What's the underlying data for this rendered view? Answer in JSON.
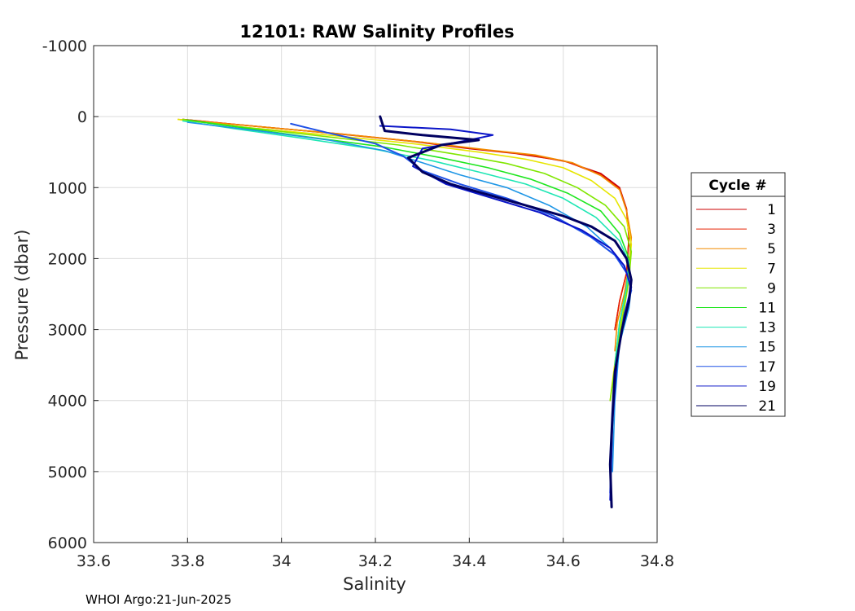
{
  "chart_data": {
    "type": "line",
    "title": "12101: RAW Salinity Profiles",
    "xlabel": "Salinity",
    "ylabel": "Pressure (dbar)",
    "xlim": [
      33.6,
      34.8
    ],
    "ylim": [
      -1000,
      6000
    ],
    "y_reversed": true,
    "grid": true,
    "x_ticks": [
      "33.6",
      "33.8",
      "34",
      "34.2",
      "34.4",
      "34.6",
      "34.8"
    ],
    "y_ticks": [
      "-1000",
      "0",
      "1000",
      "2000",
      "3000",
      "4000",
      "5000",
      "6000"
    ],
    "legend": {
      "title": "Cycle #",
      "placement": "outside-right",
      "entries": [
        "1",
        "3",
        "5",
        "7",
        "9",
        "11",
        "13",
        "15",
        "17",
        "19",
        "21"
      ]
    },
    "series": [
      {
        "name": "1",
        "color": "#cc0000",
        "x": [
          33.79,
          33.95,
          34.1,
          34.28,
          34.4,
          34.5,
          34.6,
          34.68,
          34.72,
          34.735,
          34.74,
          34.735,
          34.72,
          34.71
        ],
        "y": [
          40,
          140,
          230,
          350,
          450,
          520,
          620,
          800,
          1000,
          1300,
          1700,
          2200,
          2600,
          3000
        ]
      },
      {
        "name": "3",
        "color": "#e62000",
        "x": [
          33.79,
          33.95,
          34.12,
          34.3,
          34.42,
          34.52,
          34.61,
          34.68,
          34.72,
          34.735,
          34.74,
          34.735,
          34.72,
          34.71
        ],
        "y": [
          40,
          140,
          240,
          360,
          460,
          530,
          640,
          820,
          1020,
          1320,
          1700,
          2200,
          2600,
          3000
        ]
      },
      {
        "name": "5",
        "color": "#f28c00",
        "x": [
          33.78,
          33.95,
          34.12,
          34.3,
          34.44,
          34.54,
          34.62,
          34.68,
          34.72,
          34.735,
          34.745,
          34.74,
          34.73,
          34.715,
          34.71
        ],
        "y": [
          40,
          140,
          240,
          360,
          470,
          540,
          650,
          830,
          1030,
          1330,
          1700,
          2100,
          2500,
          2900,
          3300
        ]
      },
      {
        "name": "7",
        "color": "#e6e600",
        "x": [
          33.78,
          33.92,
          34.1,
          34.28,
          34.42,
          34.52,
          34.6,
          34.66,
          34.71,
          34.735,
          34.745,
          34.74,
          34.73,
          34.715,
          34.7
        ],
        "y": [
          40,
          150,
          260,
          380,
          500,
          600,
          720,
          900,
          1150,
          1450,
          1800,
          2200,
          2600,
          3200,
          4000
        ]
      },
      {
        "name": "9",
        "color": "#80e600",
        "x": [
          33.79,
          33.92,
          34.08,
          34.25,
          34.38,
          34.48,
          34.56,
          34.63,
          34.69,
          34.73,
          34.745,
          34.74,
          34.73,
          34.715,
          34.7
        ],
        "y": [
          40,
          150,
          270,
          400,
          540,
          660,
          800,
          1000,
          1250,
          1550,
          1900,
          2300,
          2700,
          3300,
          4000
        ]
      },
      {
        "name": "11",
        "color": "#1ee61e",
        "x": [
          33.8,
          33.92,
          34.06,
          34.22,
          34.34,
          34.44,
          34.53,
          34.61,
          34.68,
          34.72,
          34.74,
          34.735,
          34.72,
          34.71
        ],
        "y": [
          50,
          160,
          290,
          430,
          580,
          720,
          880,
          1080,
          1330,
          1650,
          2000,
          2400,
          2900,
          3500
        ]
      },
      {
        "name": "13",
        "color": "#1ee6b4",
        "x": [
          33.79,
          33.9,
          34.04,
          34.2,
          34.32,
          34.42,
          34.52,
          34.6,
          34.67,
          34.72,
          34.74,
          34.735,
          34.72,
          34.71
        ],
        "y": [
          60,
          170,
          300,
          460,
          620,
          780,
          950,
          1150,
          1420,
          1750,
          2050,
          2400,
          2900,
          3500
        ]
      },
      {
        "name": "15",
        "color": "#1e96e6",
        "x": [
          33.8,
          33.95,
          34.1,
          34.22,
          34.3,
          34.38,
          34.48,
          34.57,
          34.65,
          34.7,
          34.73,
          34.745,
          34.74,
          34.72,
          34.71,
          34.705
        ],
        "y": [
          80,
          200,
          330,
          480,
          650,
          820,
          1000,
          1250,
          1550,
          1850,
          2100,
          2400,
          2700,
          3200,
          4000,
          5000
        ]
      },
      {
        "name": "17",
        "color": "#1e50e6",
        "x": [
          34.02,
          34.1,
          34.2,
          34.26,
          34.3,
          34.38,
          34.48,
          34.58,
          34.66,
          34.71,
          34.735,
          34.745,
          34.73,
          34.715,
          34.705,
          34.7
        ],
        "y": [
          100,
          230,
          380,
          560,
          760,
          950,
          1150,
          1400,
          1700,
          1950,
          2200,
          2450,
          2800,
          3400,
          4200,
          5300
        ]
      },
      {
        "name": "19",
        "color": "#0a14c8",
        "x": [
          34.21,
          34.36,
          34.45,
          34.4,
          34.3,
          34.28,
          34.35,
          34.45,
          34.55,
          34.64,
          34.7,
          34.73,
          34.745,
          34.73,
          34.715,
          34.705,
          34.7
        ],
        "y": [
          130,
          180,
          260,
          330,
          450,
          700,
          950,
          1150,
          1350,
          1600,
          1850,
          2100,
          2400,
          2800,
          3400,
          4300,
          5400
        ]
      },
      {
        "name": "21",
        "color": "#000060",
        "x": [
          34.21,
          34.22,
          34.3,
          34.42,
          34.34,
          34.27,
          34.3,
          34.36,
          34.44,
          34.52,
          34.6,
          34.66,
          34.71,
          34.735,
          34.745,
          34.74,
          34.725,
          34.71,
          34.705,
          34.7,
          34.703
        ],
        "y": [
          0,
          200,
          260,
          330,
          400,
          580,
          780,
          950,
          1100,
          1250,
          1400,
          1550,
          1750,
          2000,
          2300,
          2600,
          3000,
          3600,
          4200,
          4900,
          5500
        ]
      }
    ]
  },
  "footer": "WHOI Argo:21-Jun-2025"
}
